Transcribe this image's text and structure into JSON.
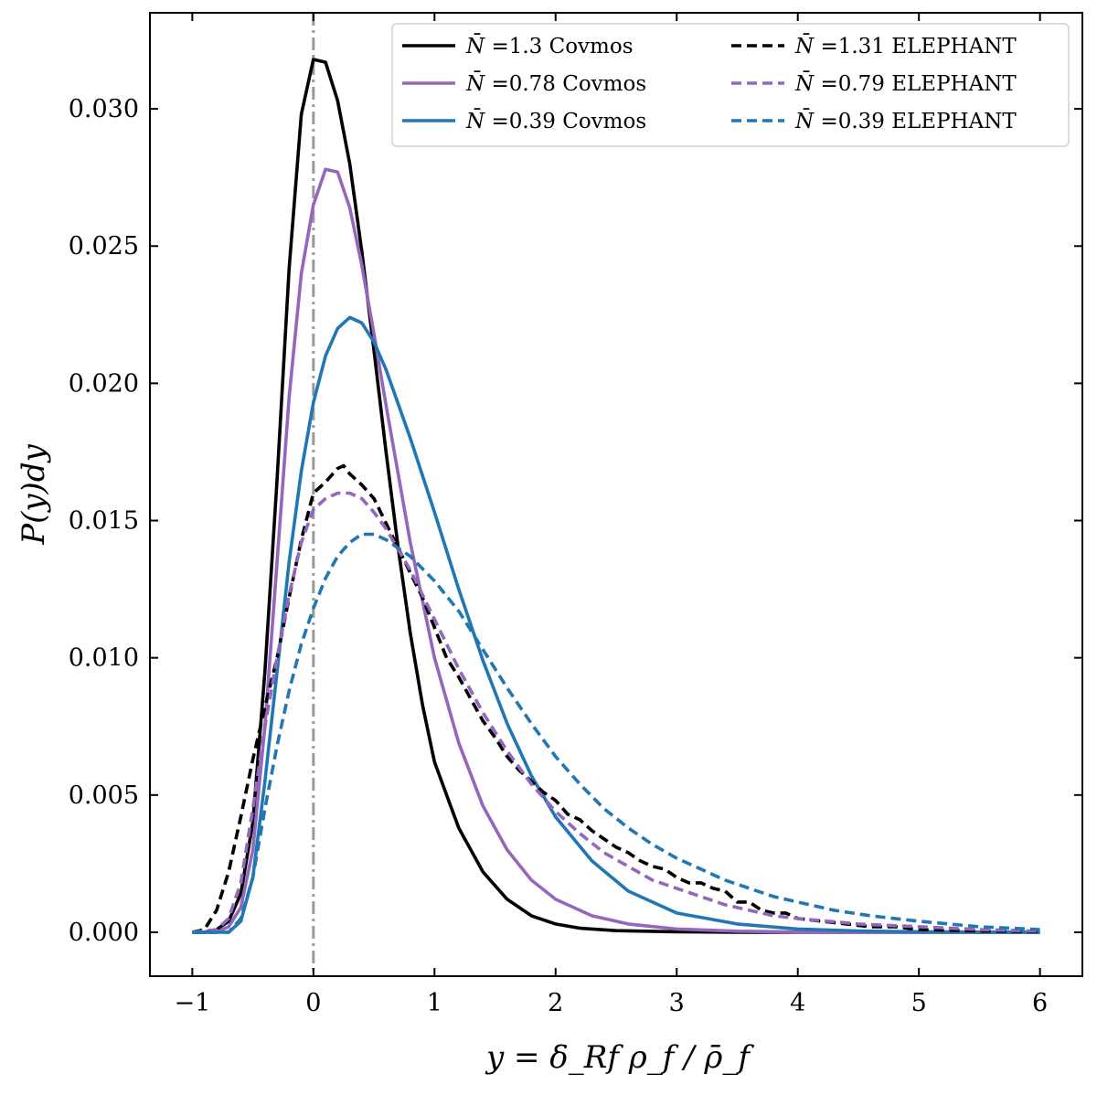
{
  "chart_data": {
    "type": "line",
    "title": "",
    "xlabel": "y = δ_Rf ρ_f / ρ̄_f",
    "ylabel": "P(y)dy",
    "xlim": [
      -1.35,
      6.35
    ],
    "ylim": [
      -0.0016,
      0.0335
    ],
    "grid": false,
    "legend_position": "top-right",
    "xticks": [
      -1,
      0,
      1,
      2,
      3,
      4,
      5,
      6
    ],
    "xtick_labels": [
      "−1",
      "0",
      "1",
      "2",
      "3",
      "4",
      "5",
      "6"
    ],
    "yticks": [
      0.0,
      0.005,
      0.01,
      0.015,
      0.02,
      0.025,
      0.03
    ],
    "ytick_labels": [
      "0.000",
      "0.005",
      "0.010",
      "0.015",
      "0.020",
      "0.025",
      "0.030"
    ],
    "reference_line": {
      "x": 0,
      "style": "dash-dot",
      "color": "#999999"
    },
    "series": [
      {
        "name": "N̄ =1.3 Covmos",
        "legend_label": "=1.3 Covmos",
        "color": "#000000",
        "style": "solid",
        "x": [
          -1.0,
          -0.9,
          -0.8,
          -0.7,
          -0.6,
          -0.5,
          -0.4,
          -0.3,
          -0.2,
          -0.1,
          0.0,
          0.1,
          0.2,
          0.3,
          0.4,
          0.5,
          0.6,
          0.7,
          0.8,
          0.9,
          1.0,
          1.2,
          1.4,
          1.6,
          1.8,
          2.0,
          2.2,
          2.5,
          3.0,
          3.5,
          4.0,
          5.0,
          6.0
        ],
        "y": [
          0.0,
          0.0,
          0.0001,
          0.0004,
          0.0014,
          0.004,
          0.0095,
          0.0165,
          0.0242,
          0.0298,
          0.0318,
          0.0317,
          0.0303,
          0.028,
          0.0248,
          0.0212,
          0.0175,
          0.014,
          0.0109,
          0.0083,
          0.0062,
          0.0038,
          0.0022,
          0.0012,
          0.0006,
          0.0003,
          0.00015,
          6e-05,
          2e-05,
          0.0,
          0.0,
          0.0,
          0.0
        ]
      },
      {
        "name": "N̄ =0.78 Covmos",
        "legend_label": "=0.78 Covmos",
        "color": "#9467bd",
        "style": "solid",
        "x": [
          -1.0,
          -0.8,
          -0.7,
          -0.6,
          -0.5,
          -0.4,
          -0.3,
          -0.2,
          -0.1,
          0.0,
          0.1,
          0.2,
          0.3,
          0.4,
          0.5,
          0.6,
          0.8,
          1.0,
          1.2,
          1.4,
          1.6,
          1.8,
          2.0,
          2.3,
          2.6,
          3.0,
          3.5,
          4.0,
          5.0,
          6.0
        ],
        "y": [
          0.0,
          0.0,
          0.0002,
          0.0009,
          0.003,
          0.0075,
          0.0135,
          0.0195,
          0.024,
          0.0265,
          0.0278,
          0.0277,
          0.0264,
          0.0243,
          0.0218,
          0.0192,
          0.0142,
          0.01,
          0.0069,
          0.0046,
          0.003,
          0.0019,
          0.0012,
          0.0006,
          0.0003,
          0.00012,
          4e-05,
          1e-05,
          0.0,
          0.0
        ]
      },
      {
        "name": "N̄ =0.39 Covmos",
        "legend_label": "=0.39 Covmos",
        "color": "#1f77b4",
        "style": "solid",
        "x": [
          -1.0,
          -0.7,
          -0.6,
          -0.5,
          -0.4,
          -0.3,
          -0.2,
          -0.1,
          0.0,
          0.1,
          0.2,
          0.3,
          0.4,
          0.5,
          0.6,
          0.8,
          1.0,
          1.2,
          1.4,
          1.6,
          1.8,
          2.0,
          2.3,
          2.6,
          3.0,
          3.5,
          4.0,
          4.5,
          5.0,
          6.0
        ],
        "y": [
          0.0,
          0.0,
          0.0004,
          0.002,
          0.0055,
          0.0095,
          0.0135,
          0.0168,
          0.0193,
          0.021,
          0.022,
          0.0224,
          0.0222,
          0.0215,
          0.0205,
          0.018,
          0.0153,
          0.0125,
          0.0099,
          0.0076,
          0.0057,
          0.0042,
          0.0026,
          0.0015,
          0.0007,
          0.0003,
          0.00012,
          5e-05,
          2e-05,
          0.0
        ]
      },
      {
        "name": "N̄ =1.31 ELEPHANT",
        "legend_label": "=1.31 ELEPHANT",
        "color": "#000000",
        "style": "dashed",
        "x": [
          -1.0,
          -0.9,
          -0.8,
          -0.7,
          -0.6,
          -0.5,
          -0.4,
          -0.3,
          -0.2,
          -0.1,
          0.0,
          0.1,
          0.2,
          0.25,
          0.3,
          0.4,
          0.5,
          0.6,
          0.7,
          0.8,
          0.9,
          1.0,
          1.1,
          1.2,
          1.3,
          1.4,
          1.5,
          1.6,
          1.7,
          1.8,
          1.9,
          2.0,
          2.1,
          2.2,
          2.3,
          2.4,
          2.5,
          2.6,
          2.7,
          2.8,
          2.9,
          3.0,
          3.1,
          3.2,
          3.3,
          3.4,
          3.5,
          3.6,
          3.7,
          3.8,
          3.9,
          4.0,
          4.2,
          4.4,
          4.6,
          4.8,
          5.0,
          5.5,
          6.0
        ],
        "y": [
          0.0,
          0.0001,
          0.0008,
          0.0022,
          0.0042,
          0.0063,
          0.0082,
          0.01,
          0.0122,
          0.0143,
          0.016,
          0.0164,
          0.0169,
          0.017,
          0.0167,
          0.0163,
          0.0158,
          0.0149,
          0.014,
          0.0131,
          0.0122,
          0.0111,
          0.01,
          0.0093,
          0.0085,
          0.0077,
          0.0071,
          0.0064,
          0.0059,
          0.0055,
          0.0051,
          0.0048,
          0.0043,
          0.0041,
          0.0037,
          0.0034,
          0.0031,
          0.0029,
          0.0026,
          0.0024,
          0.0023,
          0.002,
          0.0018,
          0.0018,
          0.0016,
          0.0015,
          0.0011,
          0.0011,
          0.0008,
          0.0007,
          0.0007,
          0.0005,
          0.0004,
          0.0003,
          0.0002,
          0.0002,
          0.0001,
          5e-05,
          2e-05
        ]
      },
      {
        "name": "N̄ =0.79 ELEPHANT",
        "legend_label": "=0.79 ELEPHANT",
        "color": "#9467bd",
        "style": "dashed",
        "x": [
          -1.0,
          -0.8,
          -0.7,
          -0.6,
          -0.5,
          -0.4,
          -0.3,
          -0.2,
          -0.1,
          0.0,
          0.1,
          0.2,
          0.3,
          0.4,
          0.5,
          0.6,
          0.8,
          1.0,
          1.2,
          1.4,
          1.6,
          1.8,
          2.0,
          2.2,
          2.4,
          2.6,
          2.8,
          3.0,
          3.2,
          3.4,
          3.6,
          3.8,
          4.0,
          4.5,
          5.0,
          5.5,
          6.0
        ],
        "y": [
          0.0,
          0.0001,
          0.0005,
          0.0018,
          0.0045,
          0.0075,
          0.01,
          0.0123,
          0.0142,
          0.0154,
          0.0158,
          0.016,
          0.016,
          0.0158,
          0.0153,
          0.0147,
          0.0132,
          0.0114,
          0.0096,
          0.008,
          0.0066,
          0.0054,
          0.0044,
          0.0036,
          0.0029,
          0.0024,
          0.0019,
          0.0016,
          0.0013,
          0.001,
          0.0008,
          0.0006,
          0.0005,
          0.0003,
          0.0002,
          0.0001,
          4e-05
        ]
      },
      {
        "name": "N̄ =0.39 ELEPHANT",
        "legend_label": "=0.39 ELEPHANT",
        "color": "#1f77b4",
        "style": "dashed",
        "x": [
          -1.0,
          -0.7,
          -0.6,
          -0.5,
          -0.4,
          -0.3,
          -0.2,
          -0.1,
          0.0,
          0.1,
          0.2,
          0.3,
          0.4,
          0.5,
          0.6,
          0.8,
          1.0,
          1.2,
          1.4,
          1.6,
          1.8,
          2.0,
          2.2,
          2.4,
          2.6,
          2.8,
          3.0,
          3.2,
          3.4,
          3.6,
          3.8,
          4.0,
          4.3,
          4.6,
          5.0,
          5.5,
          6.0
        ],
        "y": [
          0.0,
          0.0,
          0.0005,
          0.002,
          0.0045,
          0.0068,
          0.0088,
          0.0105,
          0.0118,
          0.0129,
          0.0137,
          0.0142,
          0.0145,
          0.0145,
          0.0143,
          0.0137,
          0.0128,
          0.0117,
          0.0103,
          0.0089,
          0.0076,
          0.0064,
          0.0054,
          0.0045,
          0.0038,
          0.0032,
          0.0027,
          0.0023,
          0.0019,
          0.0016,
          0.0013,
          0.0011,
          0.0008,
          0.0006,
          0.0004,
          0.0002,
          0.0001
        ]
      }
    ]
  }
}
